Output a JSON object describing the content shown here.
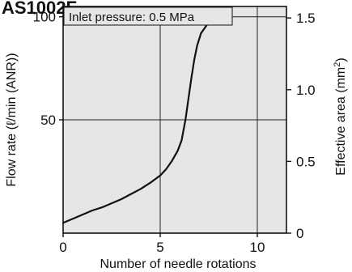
{
  "heading": "AS1002F",
  "chart_data": {
    "type": "line",
    "title": "",
    "annotation": "Inlet pressure: 0.5 MPa",
    "xlabel": "Number of needle rotations",
    "ylabel_left": "Flow rate (ℓ/min (ANR))",
    "ylabel_right_main": "Effective area (mm",
    "ylabel_right_sup": "2",
    "ylabel_right_tail": ")",
    "x_ticks": [
      0,
      5,
      10
    ],
    "x_tick_labels": [
      "0",
      "5",
      "10"
    ],
    "y_left_ticks": [
      50,
      100
    ],
    "y_left_tick_labels": [
      "50",
      "100"
    ],
    "y_right_ticks": [
      0,
      0.5,
      1.0,
      1.5
    ],
    "y_right_tick_labels": [
      "0",
      "0.5",
      "1.0",
      "1.5"
    ],
    "xlim": [
      0,
      11.5
    ],
    "ylim_left": [
      -5,
      105
    ],
    "ylim_right": [
      0,
      1.58
    ],
    "grid": true,
    "background_color": "#e6e6e6",
    "line_color": "#111111",
    "series": [
      {
        "x": [
          0,
          0.5,
          1,
          1.5,
          2,
          2.5,
          3,
          3.5,
          4,
          4.5,
          5,
          5.3,
          5.6,
          5.9,
          6.1,
          6.3,
          6.45,
          6.6,
          6.75,
          6.9,
          7.1,
          7.4,
          7.7,
          8.0
        ],
        "values": [
          0,
          2,
          4,
          6,
          7.5,
          9.5,
          11.5,
          14,
          16.5,
          19.5,
          23,
          26,
          30,
          35,
          40,
          50,
          60,
          70,
          79,
          86,
          92,
          96,
          99,
          100
        ]
      }
    ]
  }
}
